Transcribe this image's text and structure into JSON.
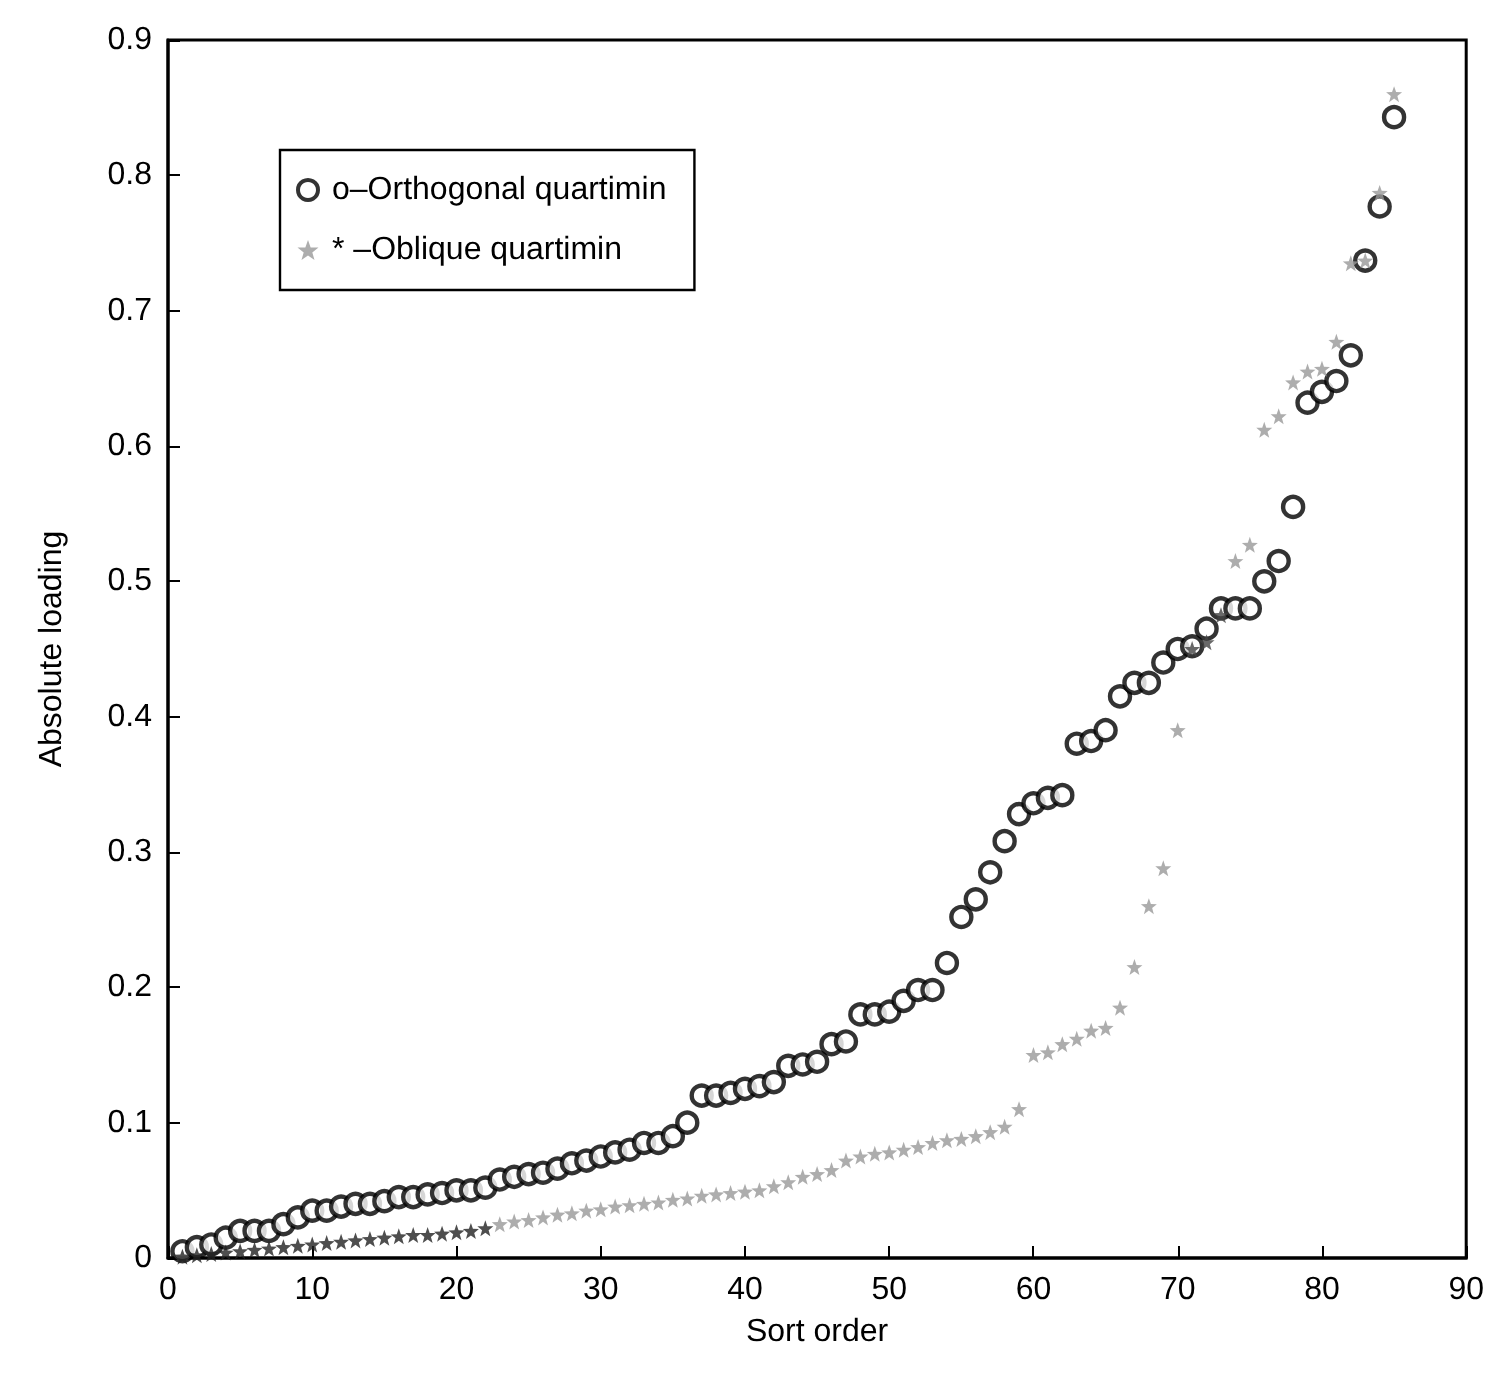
{
  "chart_data": {
    "type": "scatter",
    "xlabel": "Sort order",
    "ylabel": "Absolute loading",
    "xlim": [
      0,
      90
    ],
    "xticks": [
      0,
      10,
      20,
      30,
      40,
      50,
      60,
      70,
      80,
      90
    ],
    "ylim": [
      0,
      0.9
    ],
    "yticks": [
      0,
      0.1,
      0.2,
      0.3,
      0.4,
      0.5,
      0.6,
      0.7,
      0.8,
      0.9
    ],
    "grid": false,
    "legend": "top left",
    "x": [
      1,
      2,
      3,
      4,
      5,
      6,
      7,
      8,
      9,
      10,
      11,
      12,
      13,
      14,
      15,
      16,
      17,
      18,
      19,
      20,
      21,
      22,
      23,
      24,
      25,
      26,
      27,
      28,
      29,
      30,
      31,
      32,
      33,
      34,
      35,
      36,
      37,
      38,
      39,
      40,
      41,
      42,
      43,
      44,
      45,
      46,
      47,
      48,
      49,
      50,
      51,
      52,
      53,
      54,
      55,
      56,
      57,
      58,
      59,
      60,
      61,
      62,
      63,
      64,
      65,
      66,
      67,
      68,
      69,
      70,
      71,
      72,
      73,
      74,
      75,
      76,
      77,
      78,
      79,
      80,
      81,
      82,
      83,
      84,
      85
    ],
    "series": [
      {
        "name": "o–Orthogonal quartimin",
        "color": "#000000",
        "marker": "circle",
        "values": [
          0.005,
          0.008,
          0.01,
          0.015,
          0.02,
          0.02,
          0.02,
          0.025,
          0.03,
          0.035,
          0.035,
          0.038,
          0.04,
          0.04,
          0.042,
          0.045,
          0.045,
          0.047,
          0.048,
          0.05,
          0.05,
          0.052,
          0.058,
          0.06,
          0.062,
          0.063,
          0.066,
          0.07,
          0.072,
          0.075,
          0.078,
          0.08,
          0.085,
          0.085,
          0.09,
          0.1,
          0.12,
          0.12,
          0.122,
          0.125,
          0.127,
          0.13,
          0.142,
          0.143,
          0.145,
          0.158,
          0.16,
          0.18,
          0.18,
          0.182,
          0.19,
          0.198,
          0.198,
          0.218,
          0.252,
          0.265,
          0.285,
          0.308,
          0.328,
          0.336,
          0.34,
          0.342,
          0.38,
          0.382,
          0.39,
          0.415,
          0.425,
          0.425,
          0.44,
          0.45,
          0.452,
          0.465,
          0.48,
          0.48,
          0.48,
          0.5,
          0.515,
          0.555,
          0.632,
          0.64,
          0.648,
          0.667,
          0.737,
          0.777,
          0.843
        ]
      },
      {
        "name": "* –Oblique quartimin",
        "color": "#999999",
        "marker": "star",
        "colors": [
          "#222222",
          "#222222",
          "#222222",
          "#222222",
          "#222222",
          "#222222",
          "#222222",
          "#222222",
          "#222222",
          "#222222",
          "#222222",
          "#222222",
          "#222222",
          "#222222",
          "#222222",
          "#222222",
          "#222222",
          "#222222",
          "#222222",
          "#222222",
          "#222222",
          "#222222",
          "#999999",
          "#999999",
          "#999999",
          "#999999",
          "#999999",
          "#999999",
          "#999999",
          "#999999",
          "#999999",
          "#999999",
          "#999999",
          "#999999",
          "#999999",
          "#999999",
          "#999999",
          "#999999",
          "#999999",
          "#999999",
          "#999999",
          "#999999",
          "#999999",
          "#999999",
          "#999999",
          "#999999",
          "#999999",
          "#999999",
          "#999999",
          "#999999",
          "#999999",
          "#999999",
          "#999999",
          "#999999",
          "#999999",
          "#999999",
          "#999999",
          "#999999",
          "#999999",
          "#999999",
          "#999999",
          "#999999",
          "#999999",
          "#999999",
          "#999999",
          "#999999",
          "#999999",
          "#999999",
          "#999999",
          "#999999",
          "#444444",
          "#444444",
          "#444444",
          "#999999",
          "#999999",
          "#999999",
          "#999999",
          "#999999",
          "#999999",
          "#999999",
          "#999999",
          "#999999",
          "#999999",
          "#999999",
          "#999999"
        ],
        "values": [
          0.001,
          0.002,
          0.003,
          0.004,
          0.005,
          0.006,
          0.007,
          0.008,
          0.009,
          0.01,
          0.011,
          0.012,
          0.013,
          0.014,
          0.015,
          0.016,
          0.017,
          0.017,
          0.018,
          0.019,
          0.02,
          0.022,
          0.025,
          0.027,
          0.028,
          0.03,
          0.032,
          0.033,
          0.035,
          0.036,
          0.038,
          0.039,
          0.04,
          0.041,
          0.043,
          0.044,
          0.046,
          0.047,
          0.048,
          0.049,
          0.05,
          0.053,
          0.056,
          0.06,
          0.062,
          0.065,
          0.072,
          0.075,
          0.077,
          0.078,
          0.08,
          0.082,
          0.085,
          0.087,
          0.088,
          0.09,
          0.093,
          0.097,
          0.11,
          0.15,
          0.152,
          0.158,
          0.162,
          0.168,
          0.17,
          0.185,
          0.215,
          0.26,
          0.288,
          0.39,
          0.45,
          0.455,
          0.475,
          0.515,
          0.527,
          0.612,
          0.622,
          0.647,
          0.655,
          0.657,
          0.677,
          0.735,
          0.737,
          0.787,
          0.86
        ]
      }
    ]
  }
}
